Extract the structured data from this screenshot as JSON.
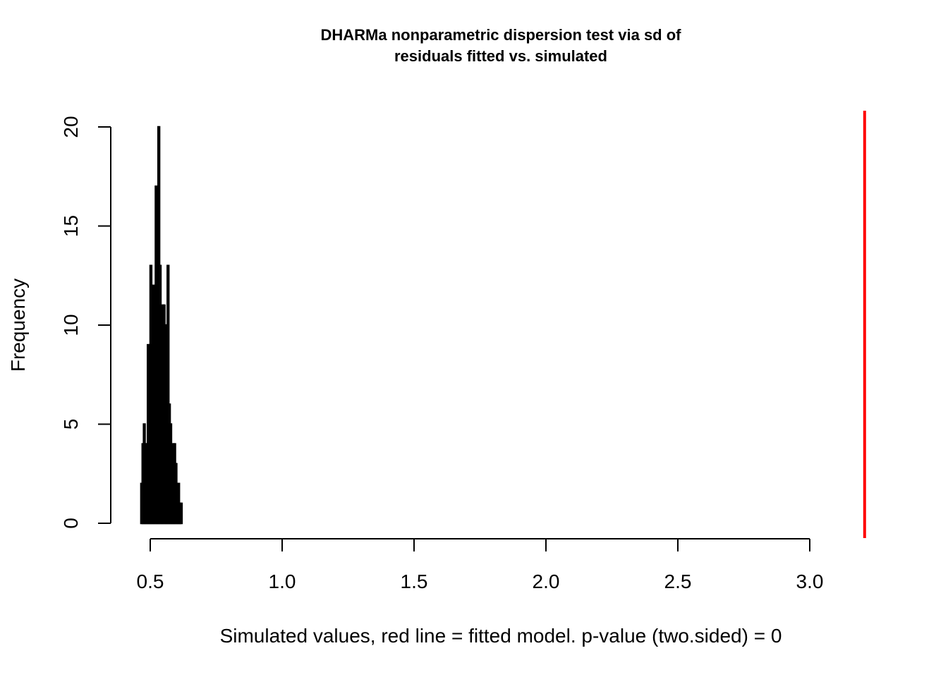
{
  "chart_data": {
    "type": "bar",
    "title": "DHARMa nonparametric dispersion test via sd of",
    "subtitle": "residuals fitted vs. simulated",
    "xlabel": "Simulated values, red line = fitted model. p-value (two.sided) = 0",
    "ylabel": "Frequency",
    "xlim": [
      0.35,
      3.2
    ],
    "ylim": [
      0,
      20
    ],
    "x_ticks": [
      "0.5",
      "1.0",
      "1.5",
      "2.0",
      "2.5",
      "3.0"
    ],
    "y_ticks": [
      "0",
      "5",
      "10",
      "15",
      "20"
    ],
    "bin_width": 0.005,
    "bins": [
      {
        "x": 0.465,
        "count": 2
      },
      {
        "x": 0.47,
        "count": 4
      },
      {
        "x": 0.475,
        "count": 5
      },
      {
        "x": 0.48,
        "count": 4
      },
      {
        "x": 0.485,
        "count": 4
      },
      {
        "x": 0.49,
        "count": 9
      },
      {
        "x": 0.495,
        "count": 9
      },
      {
        "x": 0.5,
        "count": 13
      },
      {
        "x": 0.505,
        "count": 12
      },
      {
        "x": 0.51,
        "count": 8
      },
      {
        "x": 0.515,
        "count": 12
      },
      {
        "x": 0.52,
        "count": 17
      },
      {
        "x": 0.525,
        "count": 14
      },
      {
        "x": 0.53,
        "count": 20
      },
      {
        "x": 0.535,
        "count": 13
      },
      {
        "x": 0.54,
        "count": 9
      },
      {
        "x": 0.545,
        "count": 11
      },
      {
        "x": 0.55,
        "count": 11
      },
      {
        "x": 0.555,
        "count": 10
      },
      {
        "x": 0.56,
        "count": 6
      },
      {
        "x": 0.565,
        "count": 13
      },
      {
        "x": 0.57,
        "count": 6
      },
      {
        "x": 0.575,
        "count": 5
      },
      {
        "x": 0.58,
        "count": 3
      },
      {
        "x": 0.585,
        "count": 4
      },
      {
        "x": 0.59,
        "count": 4
      },
      {
        "x": 0.595,
        "count": 3
      },
      {
        "x": 0.6,
        "count": 2
      },
      {
        "x": 0.605,
        "count": 2
      },
      {
        "x": 0.61,
        "count": 1
      },
      {
        "x": 0.615,
        "count": 1
      }
    ],
    "observed_value": 3.2,
    "observed_color": "#ff0000",
    "bar_color": "#000000",
    "grid": false,
    "legend": "none"
  }
}
